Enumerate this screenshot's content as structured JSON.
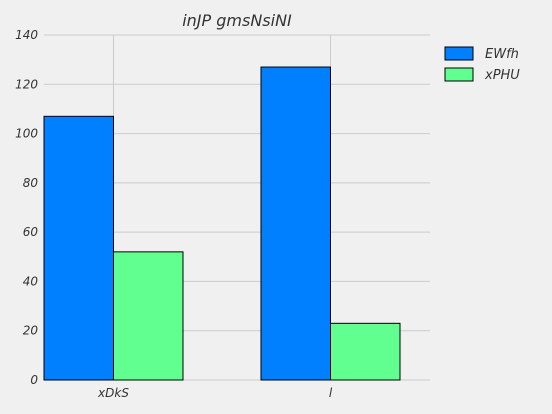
{
  "chart_data": {
    "type": "bar",
    "title": "inJP  gmsNsiNI",
    "xlabel": "",
    "ylabel": "",
    "categories": [
      "xDkS",
      "l"
    ],
    "series": [
      {
        "name": "EWfh",
        "values": [
          107,
          127
        ],
        "color": "#0080ff"
      },
      {
        "name": "xPHU",
        "values": [
          52,
          23
        ],
        "color": "#60ff90"
      }
    ],
    "ylim": [
      0,
      140
    ],
    "yticks": [
      0,
      20,
      40,
      60,
      80,
      100,
      120,
      140
    ],
    "grid": true,
    "legend": "top-right"
  }
}
